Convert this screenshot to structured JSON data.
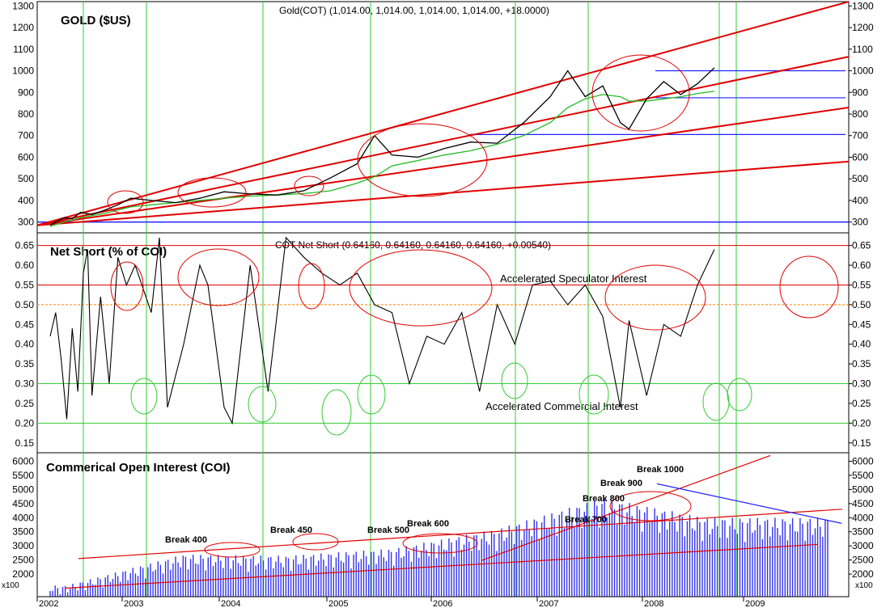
{
  "x_ticks": [
    "2002",
    "2003",
    "2004",
    "2005",
    "2006",
    "2007",
    "2008",
    "2009"
  ],
  "panels": [
    {
      "id": "gold",
      "title": "GOLD ($US)",
      "header": "Gold(COT) (1,014.00, 1,014.00, 1,014.00, 1,014.00, +18.0000)",
      "y_ticks": [
        "1300",
        "1200",
        "1100",
        "1000",
        "900",
        "800",
        "700",
        "600",
        "500",
        "400",
        "300"
      ],
      "ylim": [
        250,
        1320
      ]
    },
    {
      "id": "netshort",
      "title": "Net Short (% of COI)",
      "header": "COT Net Short (0.64160, 0.64160, 0.64160, 0.64160, +0.00540)",
      "y_ticks": [
        "0.65",
        "0.60",
        "0.55",
        "0.50",
        "0.45",
        "0.40",
        "0.35",
        "0.30",
        "0.25",
        "0.20",
        "0.15"
      ],
      "ylim": [
        0.125,
        0.682
      ],
      "annotations": [
        "Accelerated Speculator Interest",
        "Accelerated Commercial Interest"
      ]
    },
    {
      "id": "coi",
      "title": "Commerical Open Interest (COI)",
      "y_ticks": [
        "6000",
        "5500",
        "5000",
        "4500",
        "4000",
        "3500",
        "3000",
        "2500",
        "2000"
      ],
      "unit_label": "x100",
      "ylim": [
        1200,
        6300
      ],
      "break_labels": [
        "Break 400",
        "Break 450",
        "Break 500",
        "Break 600",
        "Break 700",
        "Break 800",
        "Break 900",
        "Break 1000"
      ]
    }
  ],
  "colors": {
    "price": "#000000",
    "moving_average": "#22bb22",
    "trendline": "#e00000",
    "support": "#2020ff",
    "grid_vertical": "#33cc33",
    "bars": "#3333ee",
    "threshold_orange": "#ff8800"
  },
  "chart_data": [
    {
      "type": "line",
      "title": "GOLD ($US)",
      "ylim": [
        250,
        1320
      ],
      "x": [
        "2002-01",
        "2002-03",
        "2002-06",
        "2002-09",
        "2002-12",
        "2003-03",
        "2003-06",
        "2003-09",
        "2003-12",
        "2004-03",
        "2004-06",
        "2004-09",
        "2004-12",
        "2005-03",
        "2005-06",
        "2005-09",
        "2005-12",
        "2006-03",
        "2006-05",
        "2006-07",
        "2006-10",
        "2007-01",
        "2007-04",
        "2007-07",
        "2007-10",
        "2008-01",
        "2008-03",
        "2008-05",
        "2008-07",
        "2008-09",
        "2008-10",
        "2008-12",
        "2009-02",
        "2009-04",
        "2009-06",
        "2009-08"
      ],
      "series": [
        {
          "name": "Gold(COT)",
          "values": [
            285,
            300,
            320,
            315,
            345,
            335,
            355,
            380,
            410,
            400,
            390,
            410,
            440,
            430,
            425,
            445,
            505,
            570,
            700,
            610,
            600,
            640,
            670,
            665,
            760,
            880,
            1000,
            880,
            930,
            760,
            730,
            870,
            950,
            890,
            940,
            1014
          ]
        },
        {
          "values": [
            280,
            288,
            300,
            310,
            320,
            330,
            340,
            355,
            370,
            380,
            390,
            400,
            410,
            420,
            425,
            432,
            445,
            480,
            510,
            560,
            585,
            610,
            630,
            660,
            700,
            760,
            830,
            870,
            890,
            880,
            860,
            860,
            870,
            880,
            895,
            905
          ]
        }
      ]
    },
    {
      "type": "line",
      "title": "COT Net Short",
      "ylim": [
        0.125,
        0.682
      ],
      "x": [
        "2002-01",
        "2002-03",
        "2002-05",
        "2002-07",
        "2002-09",
        "2002-11",
        "2003-01",
        "2003-02",
        "2003-03",
        "2003-05",
        "2003-07",
        "2003-09",
        "2003-11",
        "2004-01",
        "2004-03",
        "2004-04",
        "2004-05",
        "2004-07",
        "2004-09",
        "2004-10",
        "2004-12",
        "2005-01",
        "2005-03",
        "2005-05",
        "2005-07",
        "2005-09",
        "2005-11",
        "2006-01",
        "2006-03",
        "2006-05",
        "2006-07",
        "2006-09",
        "2006-11",
        "2007-01",
        "2007-03",
        "2007-05",
        "2007-07",
        "2007-09",
        "2007-11",
        "2008-01",
        "2008-03",
        "2008-05",
        "2008-07",
        "2008-09",
        "2008-10",
        "2008-12",
        "2009-02",
        "2009-04",
        "2009-06",
        "2009-08"
      ],
      "series": [
        {
          "name": "COT Net Short",
          "values": [
            0.42,
            0.48,
            0.36,
            0.21,
            0.44,
            0.28,
            0.58,
            0.64,
            0.27,
            0.52,
            0.3,
            0.62,
            0.55,
            0.6,
            0.48,
            0.67,
            0.24,
            0.4,
            0.6,
            0.55,
            0.24,
            0.2,
            0.6,
            0.28,
            0.67,
            0.62,
            0.58,
            0.55,
            0.58,
            0.5,
            0.48,
            0.3,
            0.42,
            0.4,
            0.48,
            0.28,
            0.5,
            0.4,
            0.55,
            0.56,
            0.5,
            0.55,
            0.47,
            0.24,
            0.46,
            0.27,
            0.45,
            0.42,
            0.55,
            0.64
          ]
        }
      ]
    },
    {
      "type": "bar",
      "title": "Commerical Open Interest (COI)",
      "ylim": [
        1200,
        6300
      ],
      "x": [
        "2002",
        "2003",
        "2004",
        "2005",
        "2006",
        "2007",
        "2008",
        "2009"
      ],
      "series": [
        {
          "name": "COI (x100)",
          "values": [
            1600,
            2000,
            2700,
            2650,
            2900,
            3600,
            4700,
            4000
          ]
        }
      ]
    }
  ]
}
